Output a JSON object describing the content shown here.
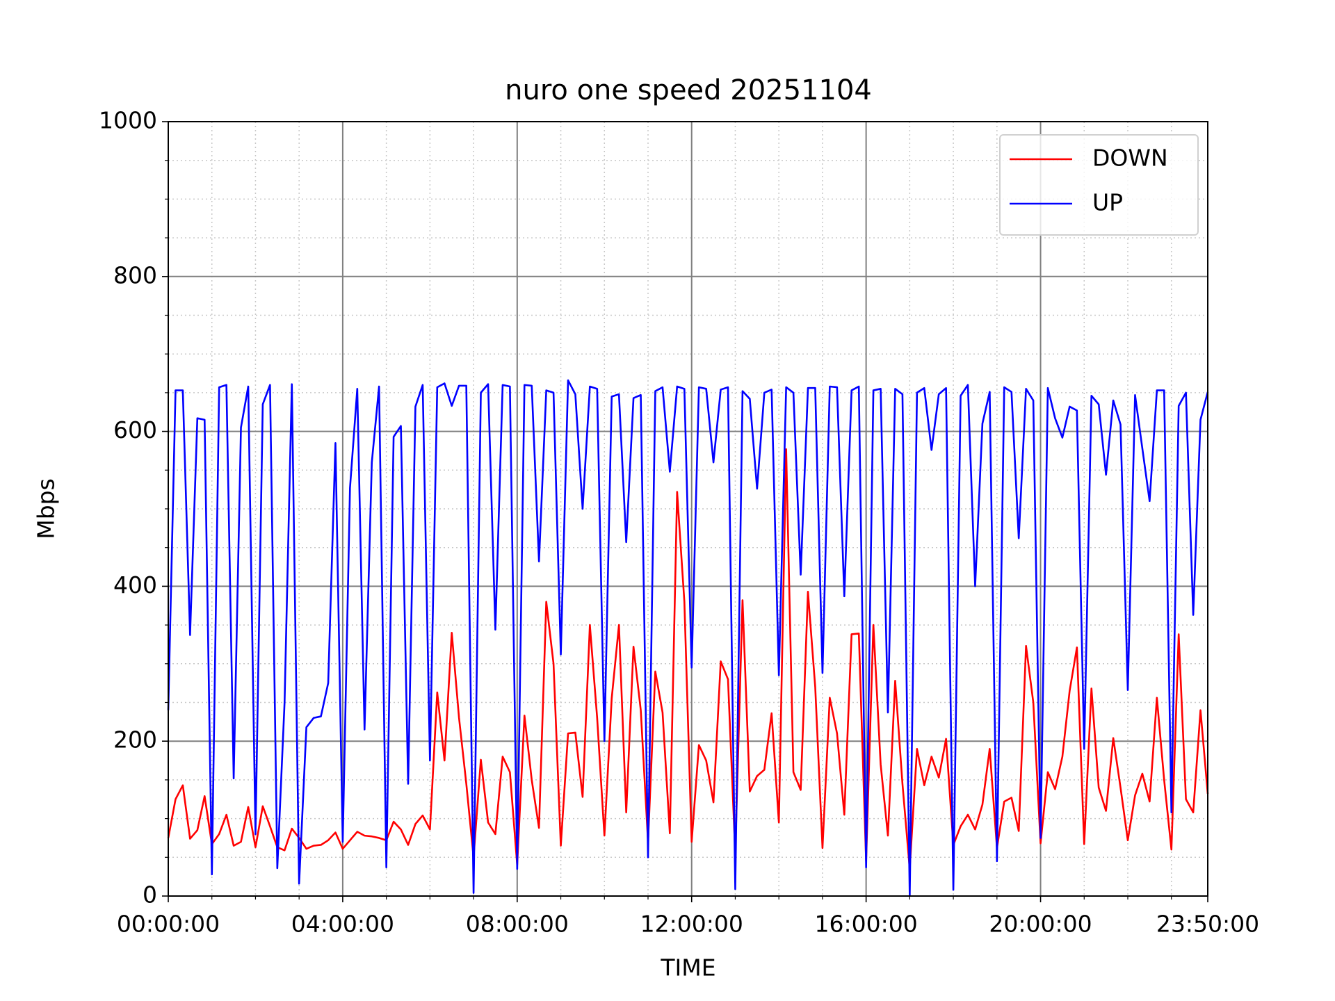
{
  "chart_data": {
    "type": "line",
    "title": "nuro one speed 20251104",
    "x_label": "TIME",
    "y_label": "Mbps",
    "x": [
      "00:00:00",
      "00:10:00",
      "00:20:00",
      "00:30:00",
      "00:40:00",
      "00:50:00",
      "01:00:00",
      "01:10:00",
      "01:20:00",
      "01:30:00",
      "01:40:00",
      "01:50:00",
      "02:00:00",
      "02:10:00",
      "02:20:00",
      "02:30:00",
      "02:40:00",
      "02:50:00",
      "03:00:00",
      "03:10:00",
      "03:20:00",
      "03:30:00",
      "03:40:00",
      "03:50:00",
      "04:00:00",
      "04:10:00",
      "04:20:00",
      "04:30:00",
      "04:40:00",
      "04:50:00",
      "05:00:00",
      "05:10:00",
      "05:20:00",
      "05:30:00",
      "05:40:00",
      "05:50:00",
      "06:00:00",
      "06:10:00",
      "06:20:00",
      "06:30:00",
      "06:40:00",
      "06:50:00",
      "07:00:00",
      "07:10:00",
      "07:20:00",
      "07:30:00",
      "07:40:00",
      "07:50:00",
      "08:00:00",
      "08:10:00",
      "08:20:00",
      "08:30:00",
      "08:40:00",
      "08:50:00",
      "09:00:00",
      "09:10:00",
      "09:20:00",
      "09:30:00",
      "09:40:00",
      "09:50:00",
      "10:00:00",
      "10:10:00",
      "10:20:00",
      "10:30:00",
      "10:40:00",
      "10:50:00",
      "11:00:00",
      "11:10:00",
      "11:20:00",
      "11:30:00",
      "11:40:00",
      "11:50:00",
      "12:00:00",
      "12:10:00",
      "12:20:00",
      "12:30:00",
      "12:40:00",
      "12:50:00",
      "13:00:00",
      "13:10:00",
      "13:20:00",
      "13:30:00",
      "13:40:00",
      "13:50:00",
      "14:00:00",
      "14:10:00",
      "14:20:00",
      "14:30:00",
      "14:40:00",
      "14:50:00",
      "15:00:00",
      "15:10:00",
      "15:20:00",
      "15:30:00",
      "15:40:00",
      "15:50:00",
      "16:00:00",
      "16:10:00",
      "16:20:00",
      "16:30:00",
      "16:40:00",
      "16:50:00",
      "17:00:00",
      "17:10:00",
      "17:20:00",
      "17:30:00",
      "17:40:00",
      "17:50:00",
      "18:00:00",
      "18:10:00",
      "18:20:00",
      "18:30:00",
      "18:40:00",
      "18:50:00",
      "19:00:00",
      "19:10:00",
      "19:20:00",
      "19:30:00",
      "19:40:00",
      "19:50:00",
      "20:00:00",
      "20:10:00",
      "20:20:00",
      "20:30:00",
      "20:40:00",
      "20:50:00",
      "21:00:00",
      "21:10:00",
      "21:20:00",
      "21:30:00",
      "21:40:00",
      "21:50:00",
      "22:00:00",
      "22:10:00",
      "22:20:00",
      "22:30:00",
      "22:40:00",
      "22:50:00",
      "23:00:00",
      "23:10:00",
      "23:20:00",
      "23:30:00",
      "23:40:00",
      "23:50:00"
    ],
    "series": [
      {
        "name": "DOWN",
        "color": "#ff0000",
        "values": [
          75,
          125,
          143,
          74,
          85,
          129,
          67,
          80,
          105,
          65,
          70,
          115,
          63,
          116,
          90,
          63,
          59,
          87,
          75,
          61,
          65,
          66,
          72,
          82,
          61,
          72,
          83,
          78,
          77,
          75,
          72,
          96,
          86,
          66,
          93,
          104,
          86,
          263,
          175,
          340,
          230,
          145,
          50,
          176,
          95,
          80,
          180,
          160,
          40,
          233,
          150,
          88,
          380,
          300,
          65,
          210,
          211,
          128,
          350,
          230,
          78,
          255,
          350,
          108,
          322,
          240,
          70,
          290,
          237,
          81,
          522,
          380,
          70,
          195,
          175,
          121,
          303,
          280,
          55,
          382,
          135,
          155,
          163,
          236,
          95,
          577,
          160,
          137,
          393,
          270,
          62,
          256,
          210,
          105,
          338,
          339,
          45,
          350,
          170,
          78,
          278,
          145,
          35,
          190,
          143,
          180,
          153,
          203,
          66,
          90,
          105,
          86,
          118,
          190,
          62,
          122,
          127,
          84,
          323,
          250,
          68,
          160,
          138,
          180,
          265,
          321,
          67,
          268,
          140,
          110,
          204,
          140,
          72,
          130,
          158,
          122,
          256,
          150,
          60,
          338,
          125,
          108,
          240,
          132
        ]
      },
      {
        "name": "UP",
        "color": "#0000ff",
        "values": [
          240,
          653,
          653,
          337,
          617,
          615,
          28,
          657,
          660,
          152,
          605,
          658,
          80,
          635,
          660,
          36,
          250,
          661,
          16,
          218,
          230,
          232,
          275,
          585,
          70,
          527,
          655,
          215,
          560,
          658,
          37,
          593,
          607,
          145,
          632,
          660,
          175,
          657,
          662,
          633,
          659,
          659,
          4,
          650,
          661,
          344,
          660,
          658,
          35,
          660,
          659,
          432,
          653,
          650,
          312,
          666,
          648,
          500,
          658,
          655,
          200,
          645,
          648,
          457,
          643,
          647,
          50,
          652,
          657,
          548,
          658,
          655,
          295,
          657,
          655,
          560,
          654,
          657,
          9,
          652,
          642,
          526,
          650,
          654,
          285,
          657,
          650,
          415,
          656,
          656,
          288,
          658,
          657,
          387,
          653,
          658,
          37,
          653,
          655,
          237,
          655,
          648,
          0,
          650,
          656,
          576,
          648,
          656,
          8,
          646,
          660,
          400,
          610,
          651,
          45,
          657,
          651,
          462,
          655,
          640,
          75,
          656,
          617,
          592,
          632,
          627,
          190,
          646,
          635,
          544,
          640,
          609,
          266,
          647,
          578,
          510,
          653,
          653,
          108,
          633,
          650,
          363,
          615,
          651
        ]
      }
    ],
    "xlim": [
      "00:00:00",
      "23:50:00"
    ],
    "xticks": [
      "00:00:00",
      "04:00:00",
      "08:00:00",
      "12:00:00",
      "16:00:00",
      "20:00:00",
      "23:50:00"
    ],
    "xminorticks": [
      "01:00:00",
      "02:00:00",
      "03:00:00",
      "05:00:00",
      "06:00:00",
      "07:00:00",
      "09:00:00",
      "10:00:00",
      "11:00:00",
      "13:00:00",
      "14:00:00",
      "15:00:00",
      "17:00:00",
      "18:00:00",
      "19:00:00",
      "21:00:00",
      "22:00:00",
      "23:00:00"
    ],
    "ylim": [
      0,
      1000
    ],
    "yticks": [
      0,
      200,
      400,
      600,
      800,
      1000
    ],
    "yminorticks": [
      50,
      100,
      150,
      250,
      300,
      350,
      450,
      500,
      550,
      650,
      700,
      750,
      850,
      900,
      950
    ],
    "grid": true,
    "legend": "upper right"
  }
}
